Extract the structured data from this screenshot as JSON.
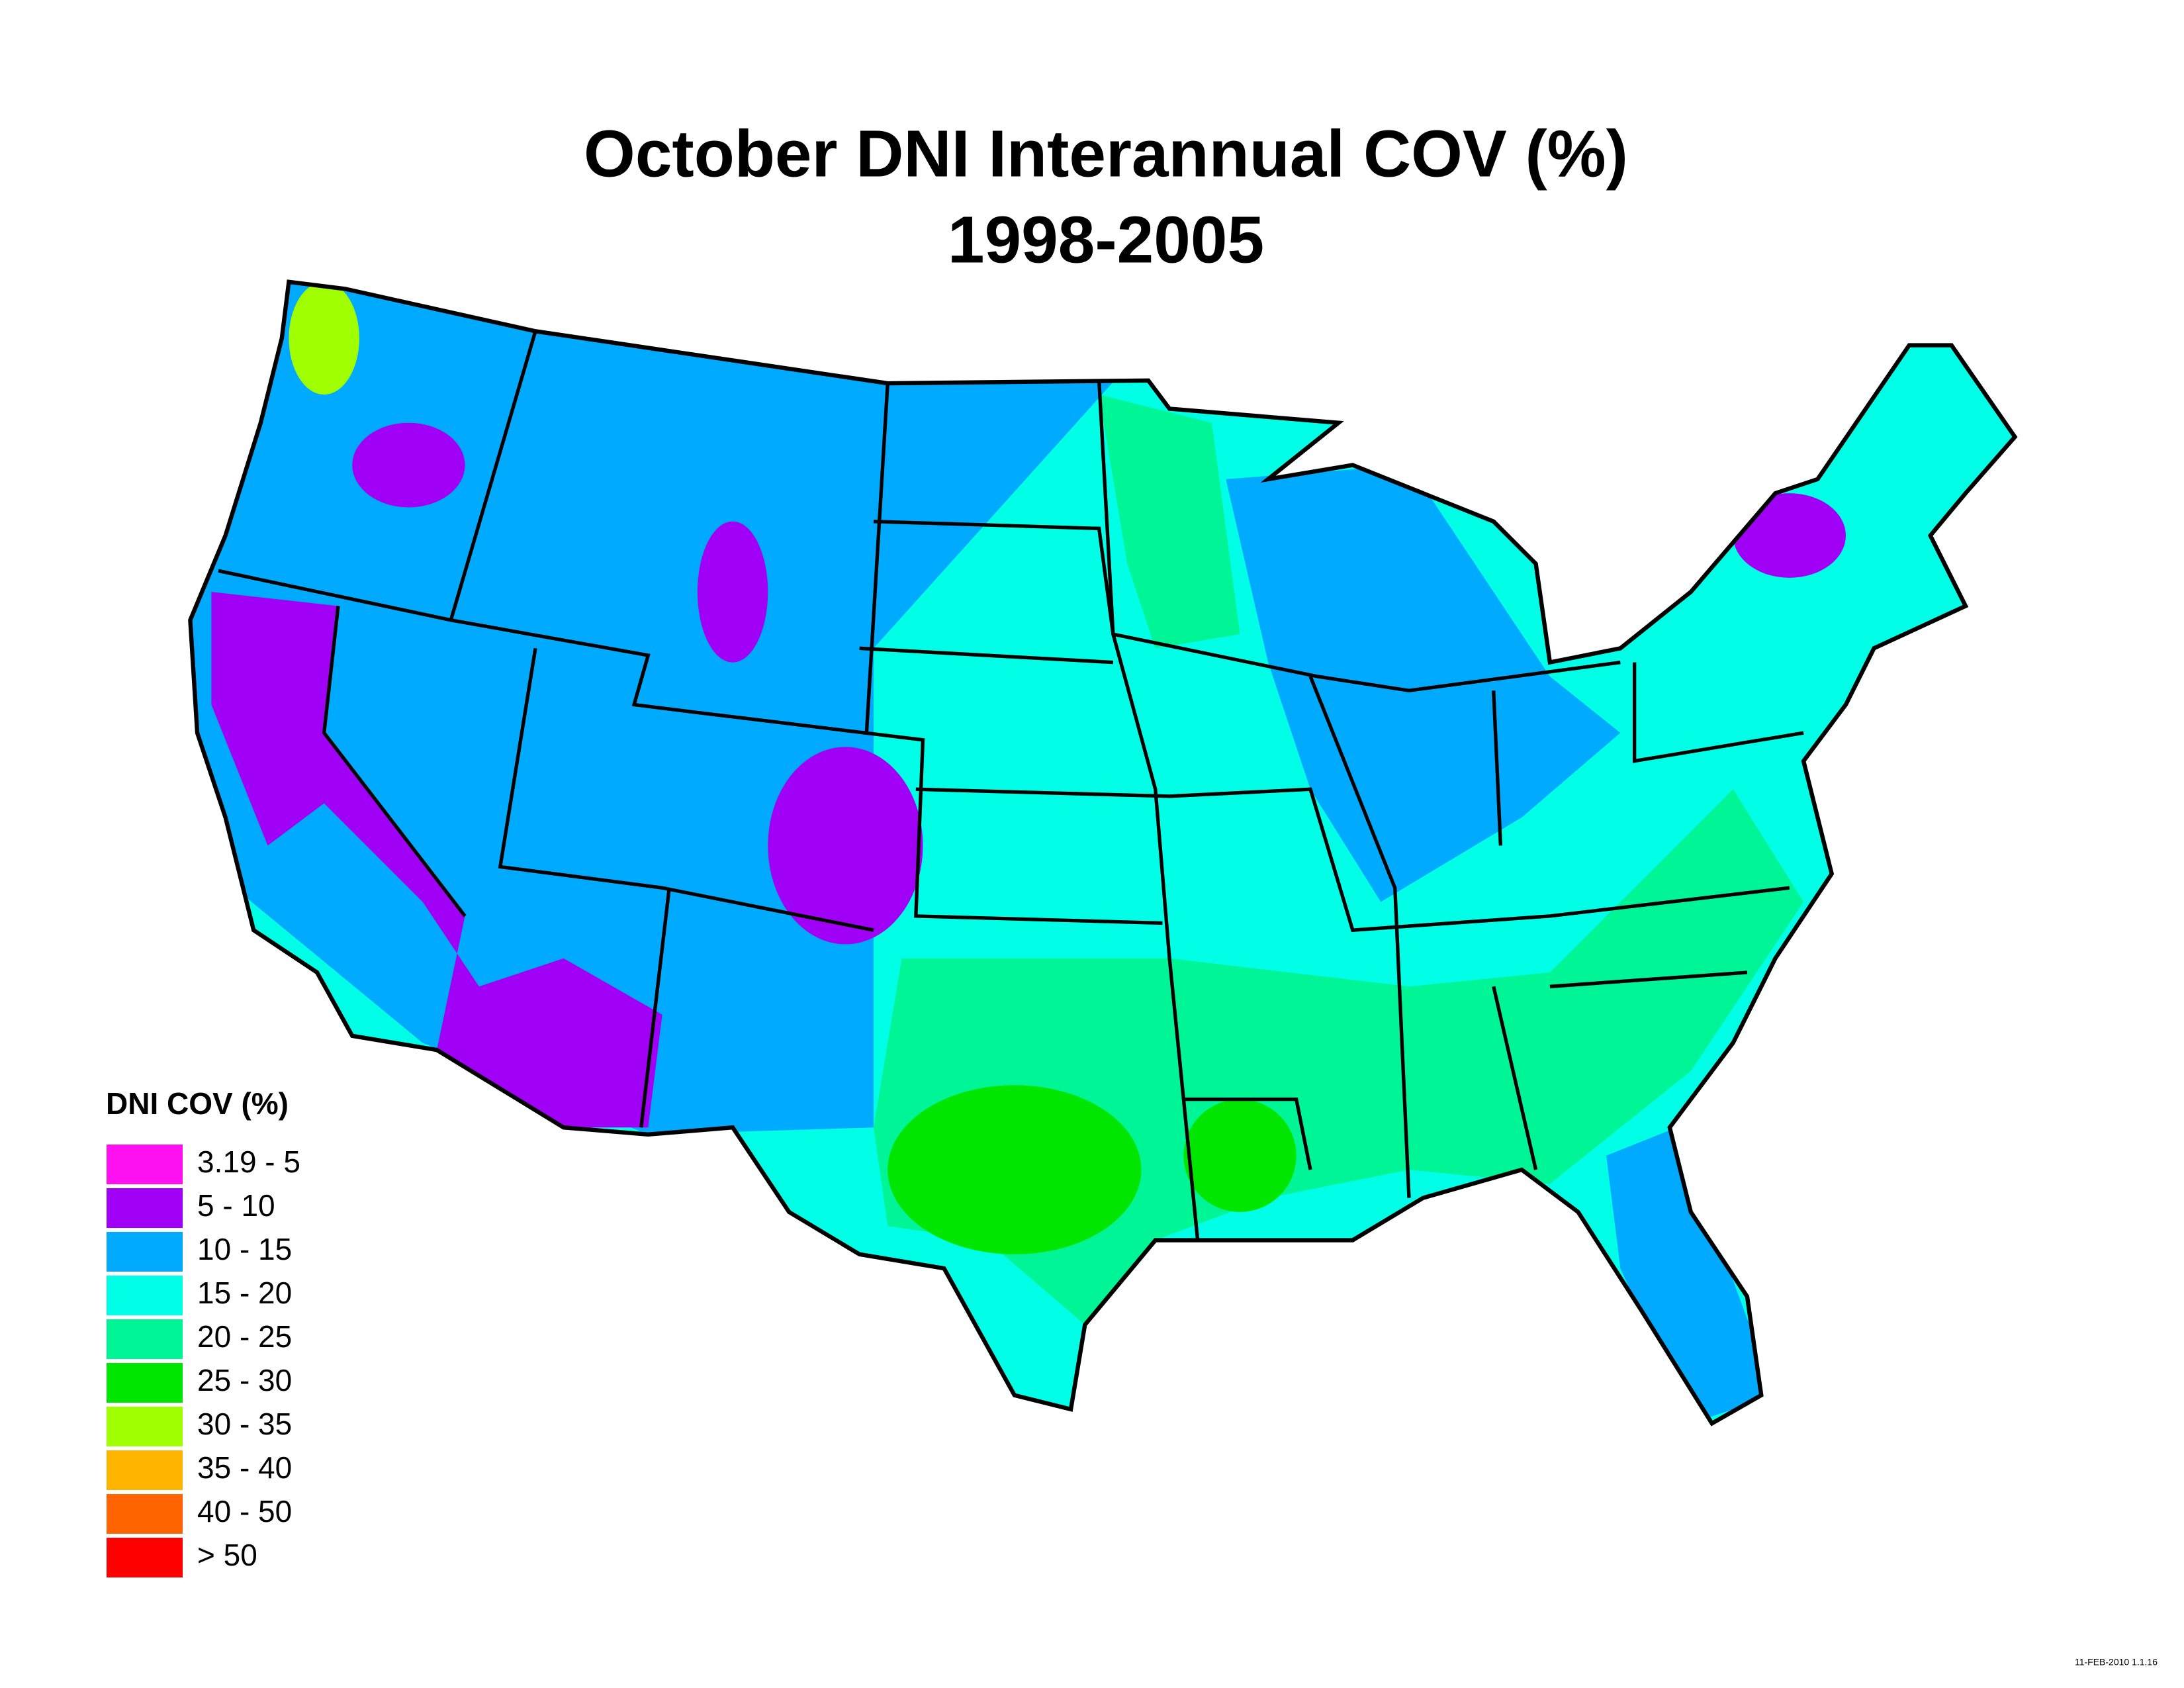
{
  "title": "October DNI Interannual COV (%)",
  "subtitle": "1998-2005",
  "legend": {
    "title": "DNI COV (%)",
    "items": [
      {
        "label": "3.19 - 5",
        "color": "#ff10f0"
      },
      {
        "label": "5 - 10",
        "color": "#a000f5"
      },
      {
        "label": "10 - 15",
        "color": "#00aaff"
      },
      {
        "label": "15 - 20",
        "color": "#00ffe6"
      },
      {
        "label": "20 - 25",
        "color": "#00f596"
      },
      {
        "label": "25 - 30",
        "color": "#00e600"
      },
      {
        "label": "30 - 35",
        "color": "#a0ff00"
      },
      {
        "label": "35 - 40",
        "color": "#ffb400"
      },
      {
        "label": "40 - 50",
        "color": "#ff6400"
      },
      {
        "label": "> 50",
        "color": "#ff0000"
      }
    ]
  },
  "footer": "11-FEB-2010 1.1.16"
}
